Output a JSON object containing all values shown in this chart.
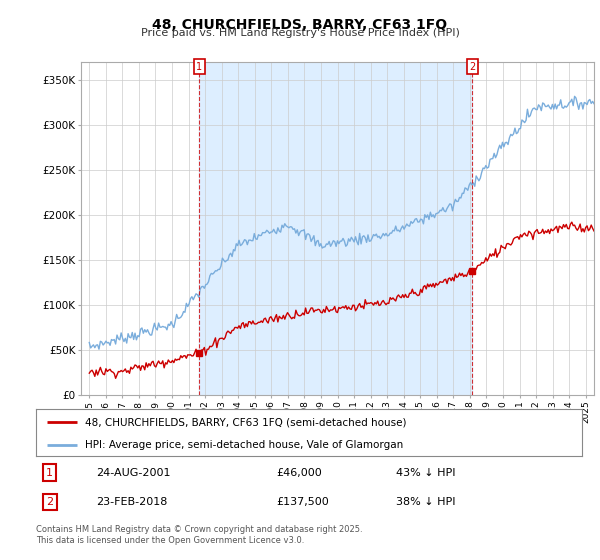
{
  "title": "48, CHURCHFIELDS, BARRY, CF63 1FQ",
  "subtitle": "Price paid vs. HM Land Registry's House Price Index (HPI)",
  "legend_line1": "48, CHURCHFIELDS, BARRY, CF63 1FQ (semi-detached house)",
  "legend_line2": "HPI: Average price, semi-detached house, Vale of Glamorgan",
  "footer": "Contains HM Land Registry data © Crown copyright and database right 2025.\nThis data is licensed under the Open Government Licence v3.0.",
  "annotation1_label": "1",
  "annotation1_date": "24-AUG-2001",
  "annotation1_price": "£46,000",
  "annotation1_hpi": "43% ↓ HPI",
  "annotation2_label": "2",
  "annotation2_date": "23-FEB-2018",
  "annotation2_price": "£137,500",
  "annotation2_hpi": "38% ↓ HPI",
  "price_paid_color": "#cc0000",
  "hpi_color": "#7aaddc",
  "shade_color": "#ddeeff",
  "marker1_x": 2001.65,
  "marker1_y": 46000,
  "marker2_x": 2018.15,
  "marker2_y": 137500,
  "ylim": [
    0,
    370000
  ],
  "xlim": [
    1994.5,
    2025.5
  ],
  "background_color": "#ffffff",
  "grid_color": "#cccccc"
}
